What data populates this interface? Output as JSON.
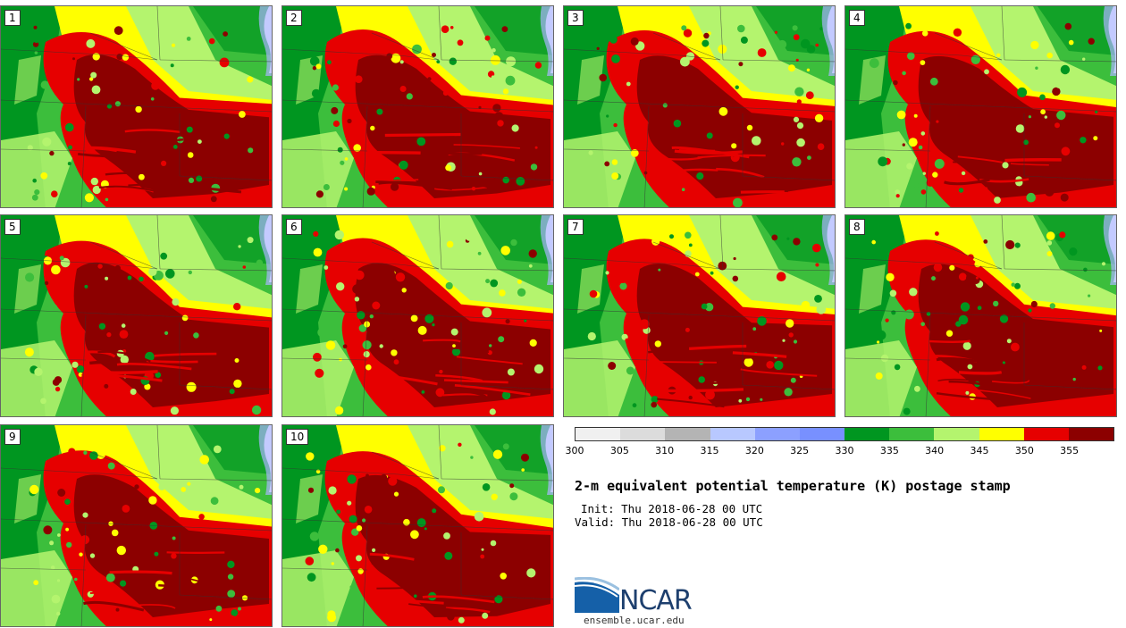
{
  "panels": [
    "1",
    "2",
    "3",
    "4",
    "5",
    "6",
    "7",
    "8",
    "9",
    "10"
  ],
  "legend": {
    "colors": [
      "#f0f0f0",
      "#dcdcdc",
      "#b4b4b4",
      "#b8c8ff",
      "#8ca0ff",
      "#7890ff",
      "#009620",
      "#3cbe3c",
      "#b4f46e",
      "#ffff00",
      "#e60000",
      "#8c0000"
    ],
    "ticks": [
      "300",
      "305",
      "310",
      "315",
      "320",
      "325",
      "330",
      "335",
      "340",
      "345",
      "350",
      "355"
    ]
  },
  "title": "2-m equivalent potential temperature (K) postage stamp",
  "init": "Init: Thu 2018-06-28 00 UTC",
  "valid": "Valid: Thu 2018-06-28 00 UTC",
  "logo": {
    "wordmark": "NCAR",
    "url": "ensemble.ucar.edu"
  }
}
